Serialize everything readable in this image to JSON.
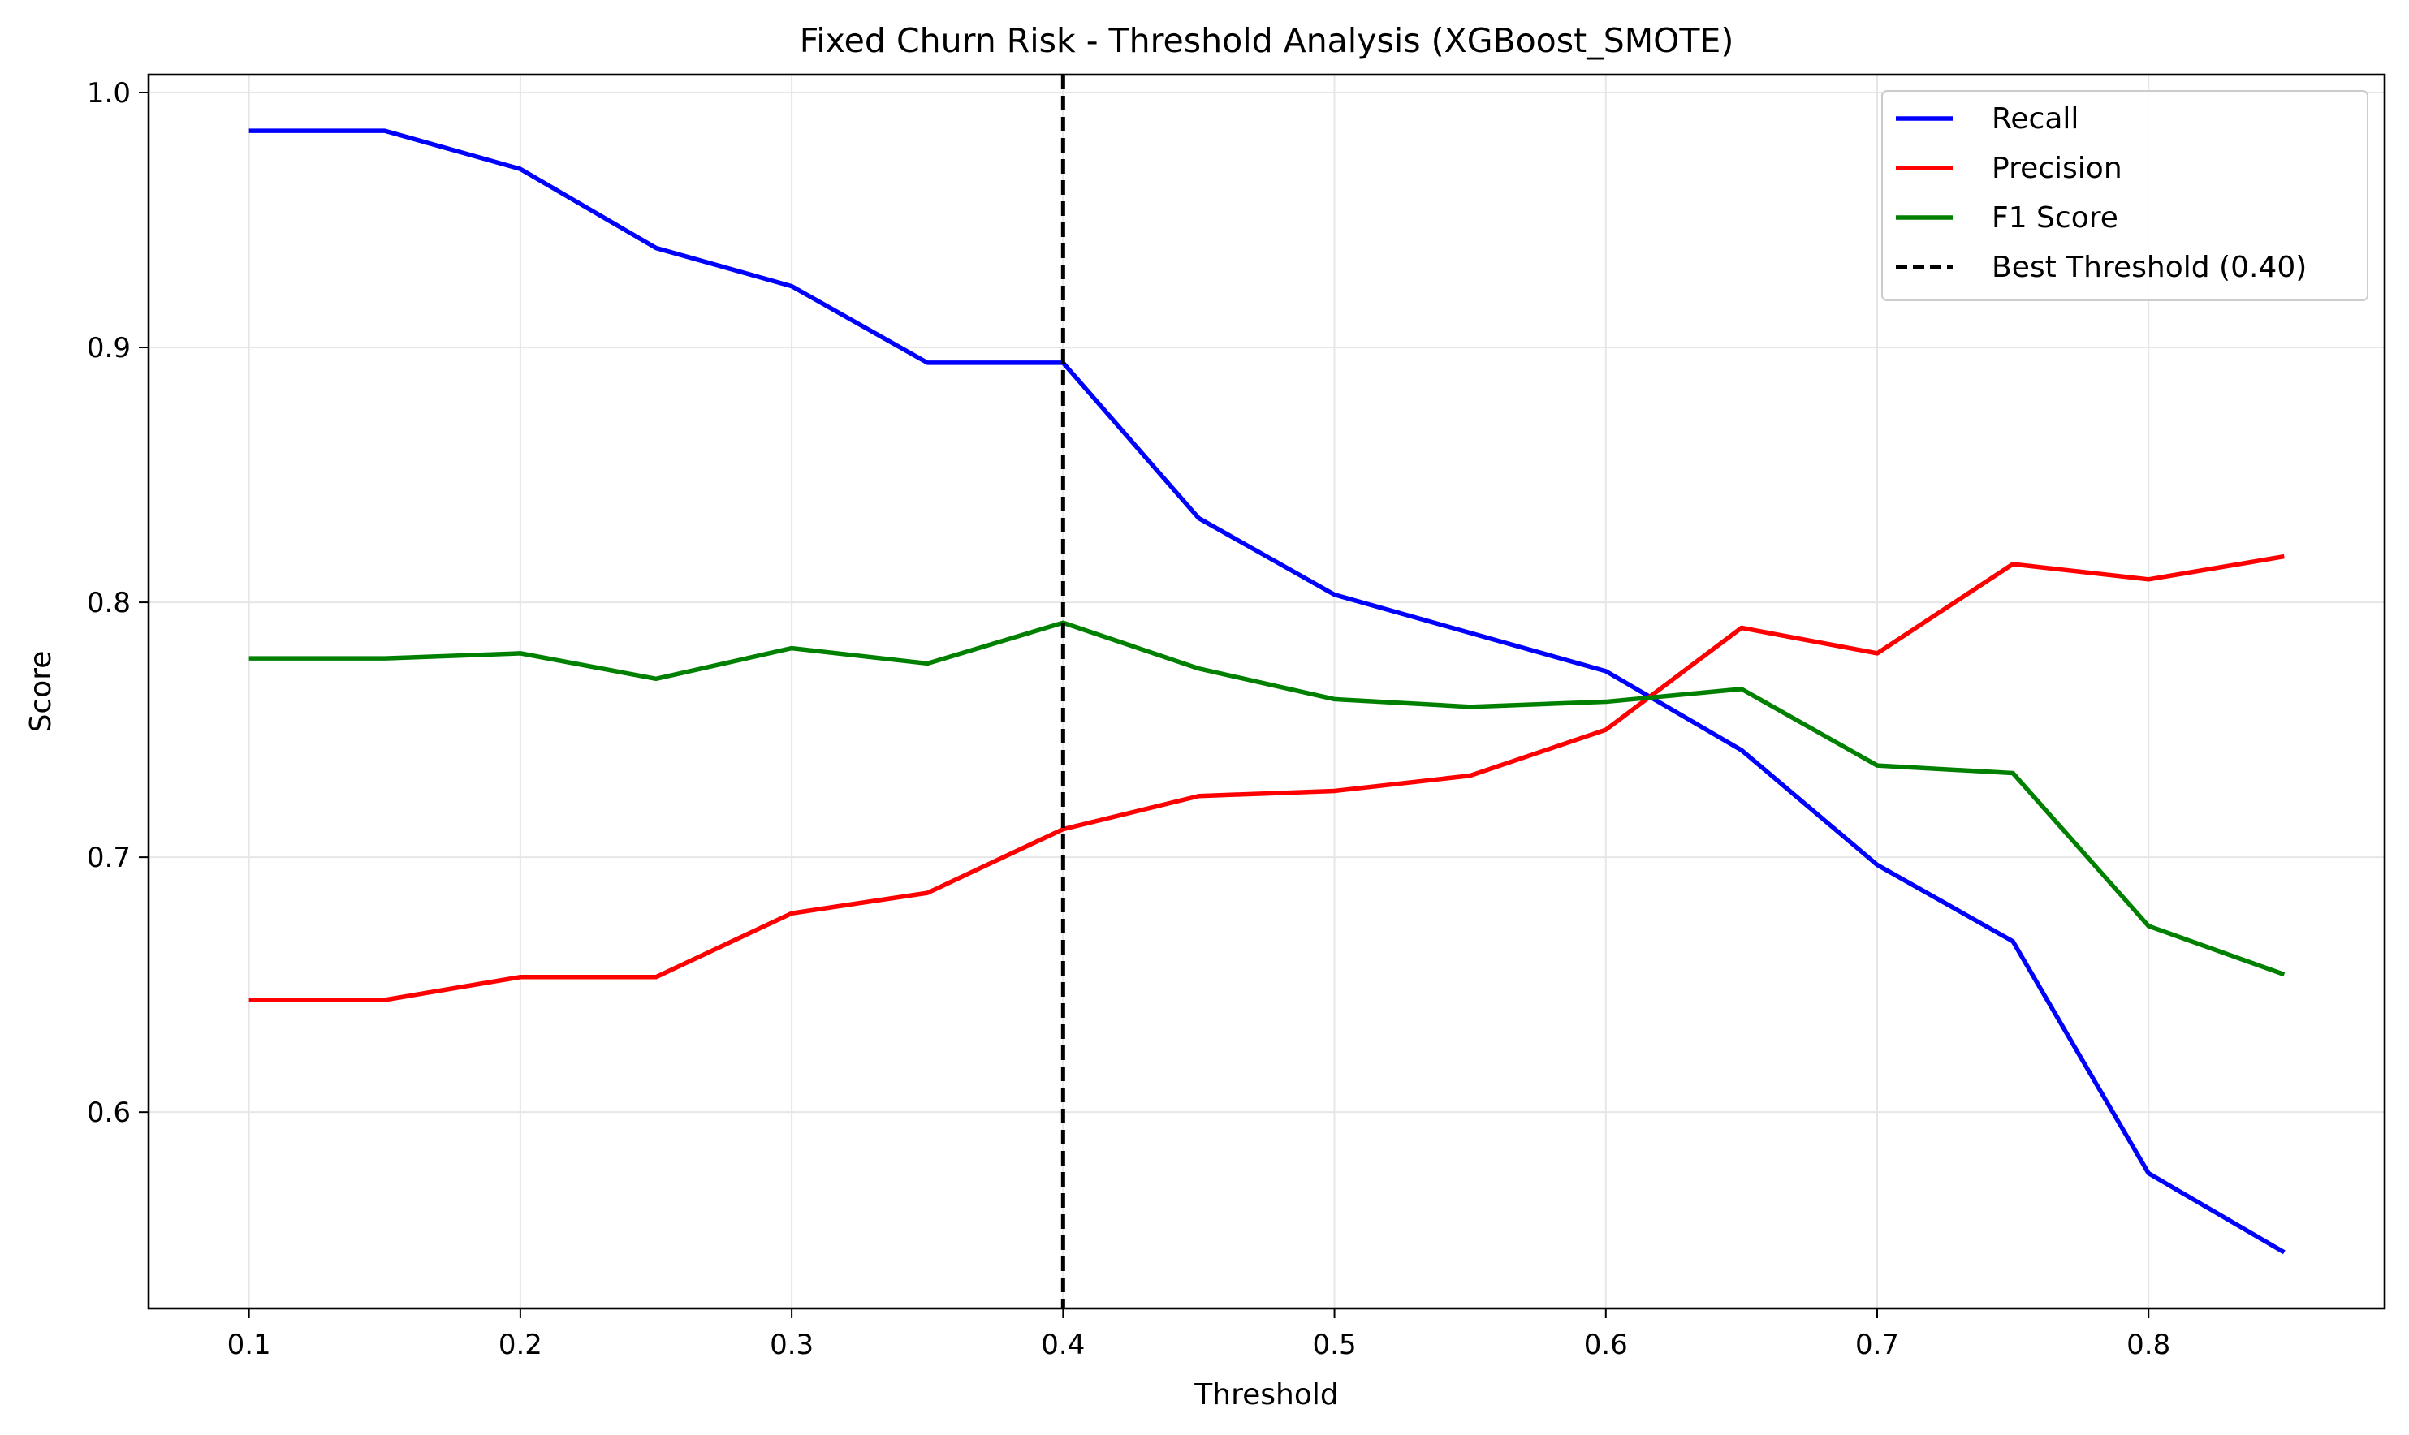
{
  "chart_data": {
    "type": "line",
    "title": "Fixed Churn Risk - Threshold Analysis (XGBoost_SMOTE)",
    "xlabel": "Threshold",
    "ylabel": "Score",
    "xlim": [
      0.063,
      0.887
    ],
    "ylim": [
      0.523,
      1.007
    ],
    "xticks": [
      0.1,
      0.2,
      0.3,
      0.4,
      0.5,
      0.6,
      0.7,
      0.8
    ],
    "xtick_labels": [
      "0.1",
      "0.2",
      "0.3",
      "0.4",
      "0.5",
      "0.6",
      "0.7",
      "0.8"
    ],
    "yticks": [
      0.6,
      0.7,
      0.8,
      0.9,
      1.0
    ],
    "ytick_labels": [
      "0.6",
      "0.7",
      "0.8",
      "0.9",
      "1.0"
    ],
    "grid": true,
    "legend_position": "top-right",
    "x": [
      0.1,
      0.15,
      0.2,
      0.25,
      0.3,
      0.35,
      0.4,
      0.45,
      0.5,
      0.55,
      0.6,
      0.65,
      0.7,
      0.75,
      0.8,
      0.85
    ],
    "series": [
      {
        "name": "Recall",
        "color": "#0000ff",
        "style": "solid",
        "values": [
          0.985,
          0.985,
          0.97,
          0.939,
          0.924,
          0.894,
          0.894,
          0.833,
          0.803,
          0.788,
          0.773,
          0.742,
          0.697,
          0.667,
          0.576,
          0.545
        ]
      },
      {
        "name": "Precision",
        "color": "#ff0000",
        "style": "solid",
        "values": [
          0.644,
          0.644,
          0.653,
          0.653,
          0.678,
          0.686,
          0.711,
          0.724,
          0.726,
          0.732,
          0.75,
          0.79,
          0.78,
          0.815,
          0.809,
          0.818
        ]
      },
      {
        "name": "F1 Score",
        "color": "#008000",
        "style": "solid",
        "values": [
          0.778,
          0.778,
          0.78,
          0.77,
          0.782,
          0.776,
          0.792,
          0.774,
          0.762,
          0.759,
          0.761,
          0.766,
          0.736,
          0.733,
          0.673,
          0.654
        ]
      }
    ],
    "reference_lines": [
      {
        "name": "Best Threshold (0.40)",
        "orientation": "vertical",
        "x": 0.4,
        "color": "#000000",
        "style": "dashed"
      }
    ]
  }
}
